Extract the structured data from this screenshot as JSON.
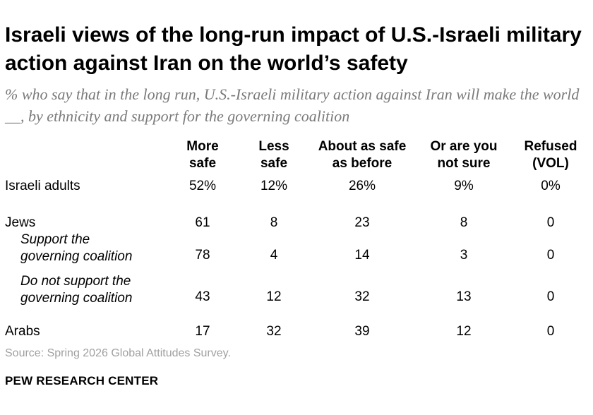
{
  "title": "Israeli views of the long-run impact of U.S.-Israeli military action against Iran on the world’s safety",
  "subtitle": "% who say that in the long run, U.S.-Israeli military action against Iran will make the world __, by ethnicity and support for the governing coalition",
  "chart_data": {
    "type": "table",
    "columns": [
      "More\nsafe",
      "Less\nsafe",
      "About as safe\nas before",
      "Or are you\nnot sure",
      "Refused\n(VOL)"
    ],
    "rows": [
      {
        "label": "Israeli adults",
        "indent": false,
        "values": [
          "52%",
          "12%",
          "26%",
          "9%",
          "0%"
        ]
      },
      {
        "label": "Jews",
        "indent": false,
        "values": [
          "61",
          "8",
          "23",
          "8",
          "0"
        ]
      },
      {
        "label": "Support the\ngoverning coalition",
        "indent": true,
        "values": [
          "78",
          "4",
          "14",
          "3",
          "0"
        ]
      },
      {
        "label": "Do not support the\ngoverning coalition",
        "indent": true,
        "values": [
          "43",
          "12",
          "32",
          "13",
          "0"
        ]
      },
      {
        "label": "Arabs",
        "indent": false,
        "values": [
          "17",
          "32",
          "39",
          "12",
          "0"
        ]
      }
    ]
  },
  "source": "Source: Spring 2026 Global Attitudes Survey.",
  "footer": "PEW RESEARCH CENTER"
}
